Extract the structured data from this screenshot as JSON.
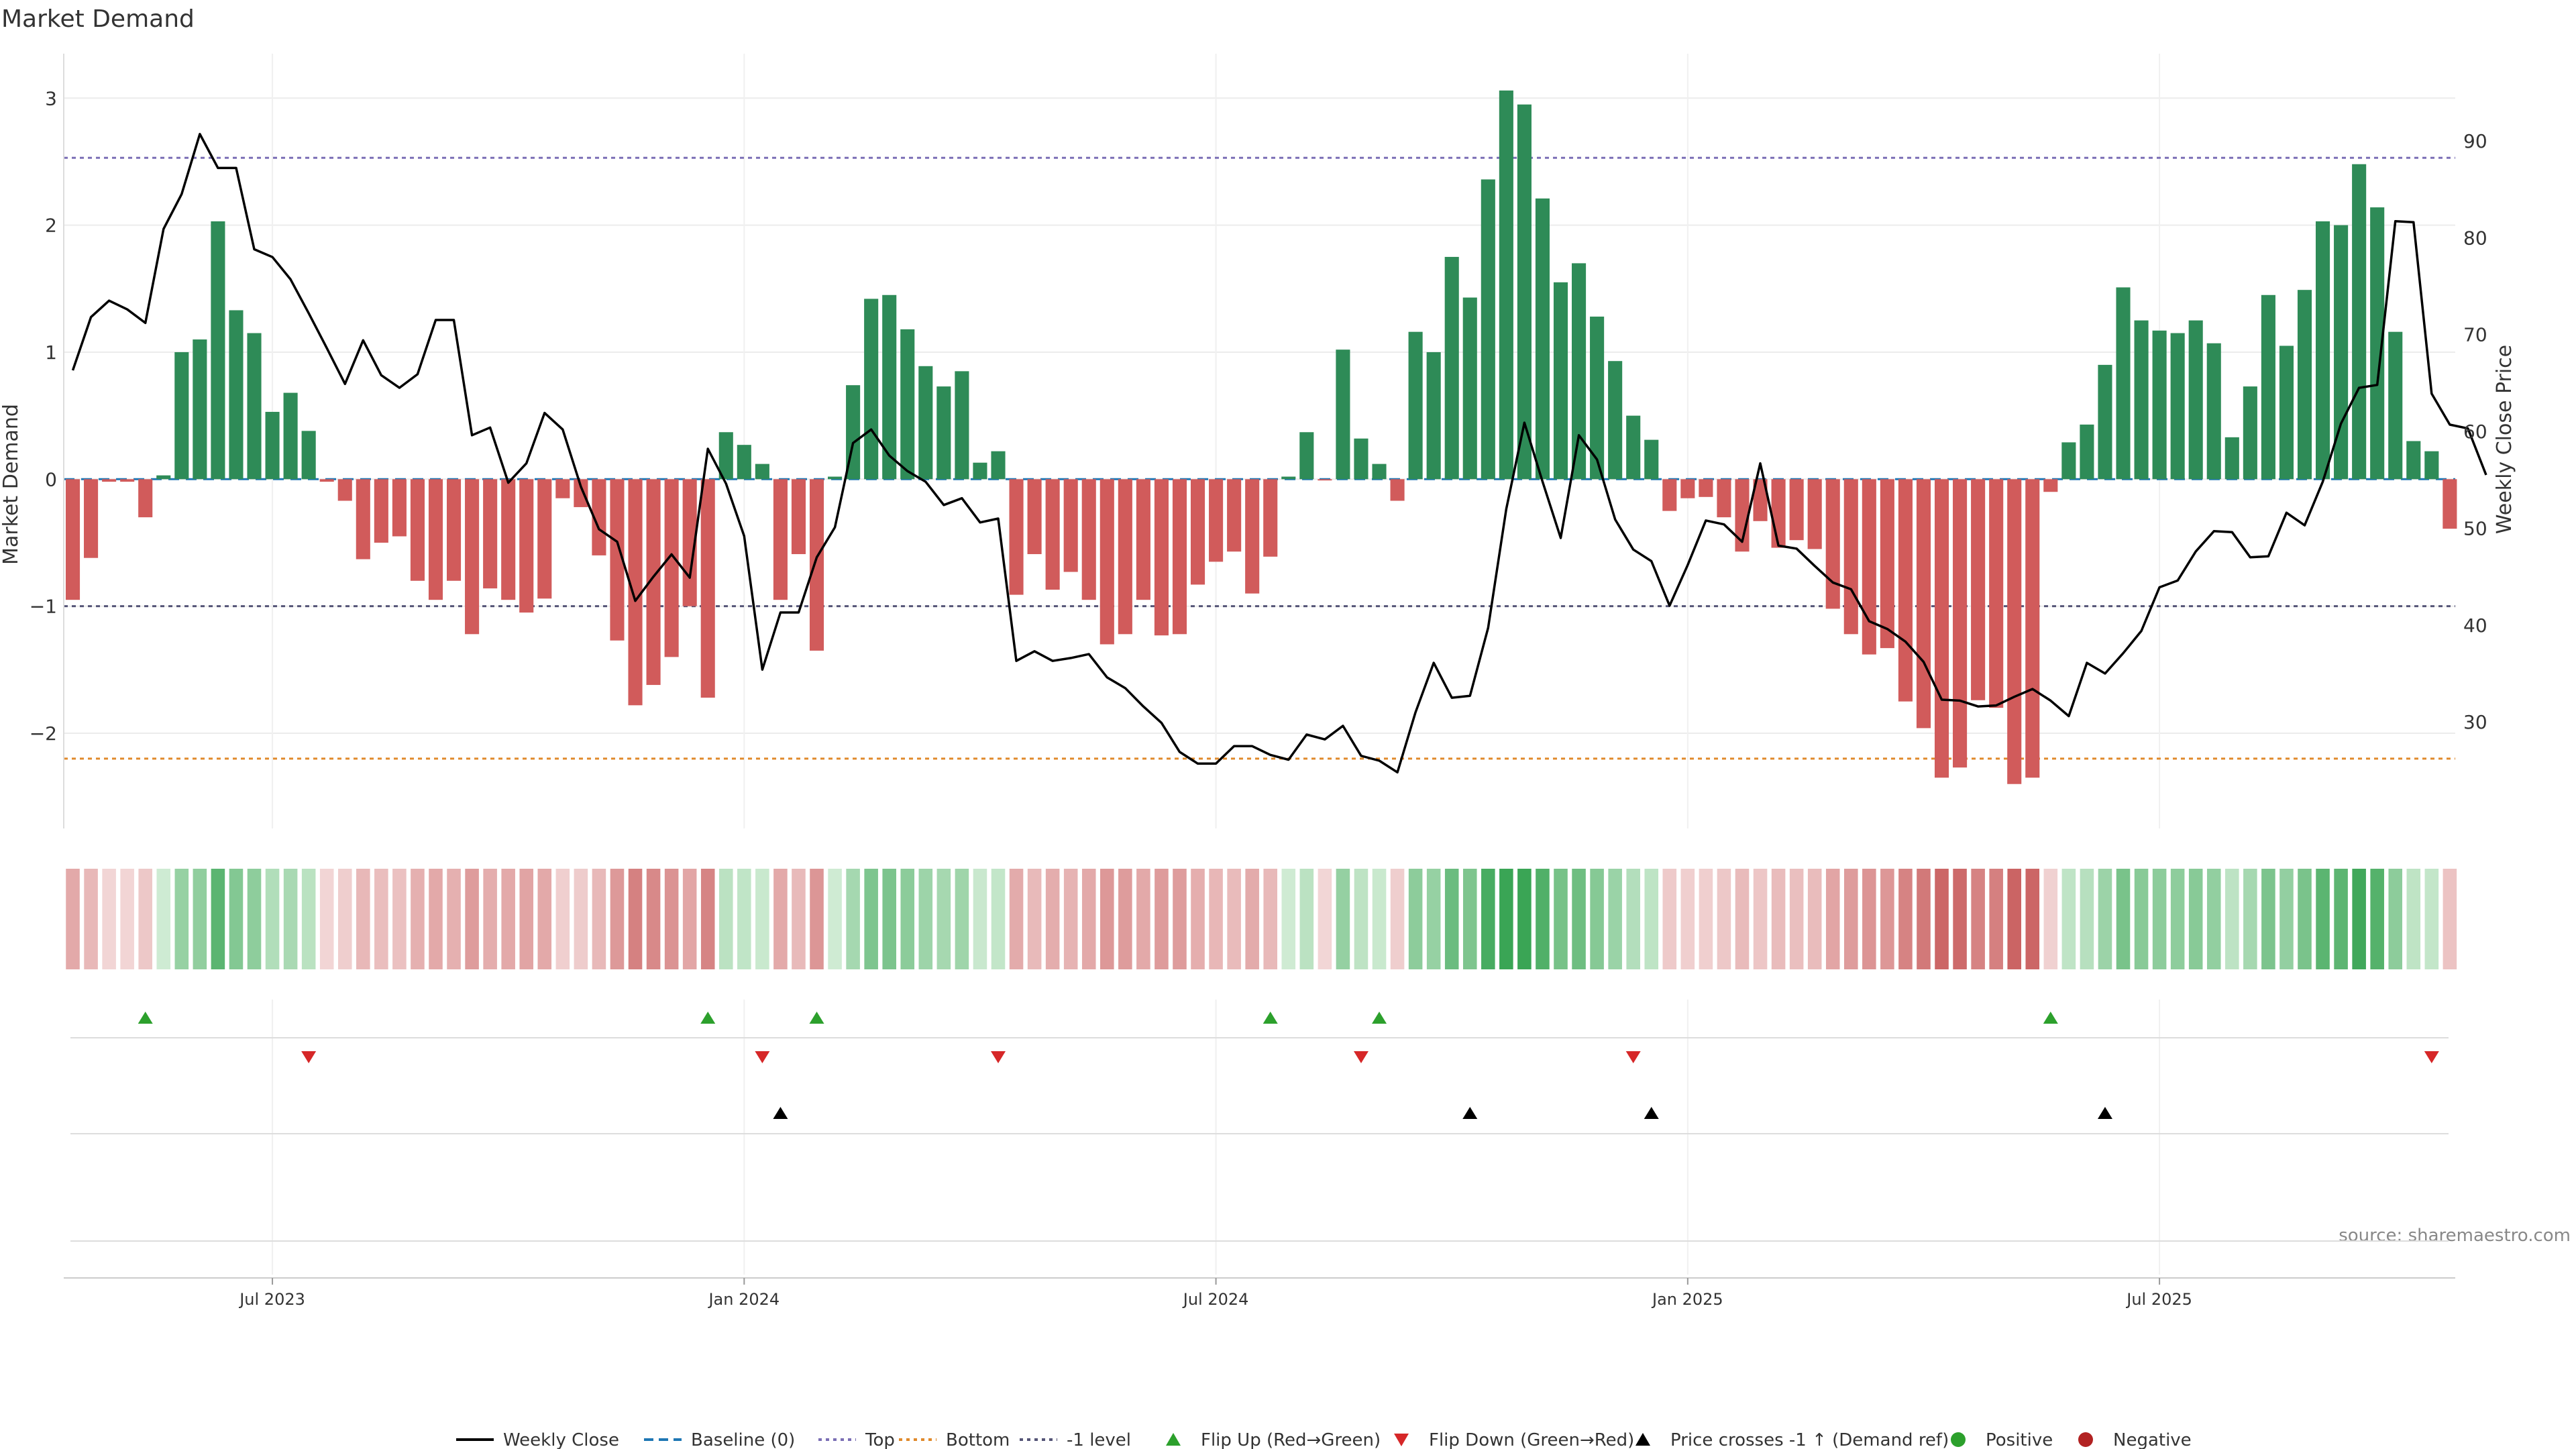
{
  "chart_data": {
    "type": "bar",
    "title": "Market Demand",
    "ylabel_left": "Market Demand",
    "ylabel_right": "Weekly Close Price",
    "ylim_left": [
      -2.75,
      3.35
    ],
    "ylim_right": [
      19,
      99
    ],
    "yticks_left": [
      {
        "v": 3,
        "label": "3"
      },
      {
        "v": 2,
        "label": "2"
      },
      {
        "v": 1,
        "label": "1"
      },
      {
        "v": 0,
        "label": "0"
      },
      {
        "v": -1,
        "label": "−1"
      },
      {
        "v": -2,
        "label": "−2"
      }
    ],
    "yticks_right": [
      {
        "v": 90,
        "label": "90"
      },
      {
        "v": 80,
        "label": "80"
      },
      {
        "v": 70,
        "label": "70"
      },
      {
        "v": 60,
        "label": "60"
      },
      {
        "v": 50,
        "label": "50"
      },
      {
        "v": 40,
        "label": "40"
      },
      {
        "v": 30,
        "label": "30"
      }
    ],
    "x_start": "2023-04-17",
    "x_step_days": 7,
    "x_ticks": [
      {
        "index": 11,
        "label": "Jul 2023"
      },
      {
        "index": 37,
        "label": "Jan 2024"
      },
      {
        "index": 63,
        "label": "Jul 2024"
      },
      {
        "index": 89,
        "label": "Jan 2025"
      },
      {
        "index": 115,
        "label": "Jul 2025"
      }
    ],
    "reference_lines": {
      "baseline": 0,
      "top": 2.53,
      "bottom": -2.2,
      "minus_one": -1
    },
    "demand": [
      -0.95,
      -0.62,
      -0.02,
      -0.02,
      -0.3,
      0.03,
      1.0,
      1.1,
      2.03,
      1.33,
      1.15,
      0.53,
      0.68,
      0.38,
      -0.02,
      -0.17,
      -0.63,
      -0.5,
      -0.45,
      -0.8,
      -0.95,
      -0.8,
      -1.22,
      -0.86,
      -0.95,
      -1.05,
      -0.94,
      -0.15,
      -0.22,
      -0.6,
      -1.27,
      -1.78,
      -1.62,
      -1.4,
      -1.0,
      -1.72,
      0.37,
      0.27,
      0.12,
      -0.95,
      -0.59,
      -1.35,
      0.02,
      0.74,
      1.42,
      1.45,
      1.18,
      0.89,
      0.73,
      0.85,
      0.13,
      0.22,
      -0.91,
      -0.59,
      -0.87,
      -0.73,
      -0.95,
      -1.3,
      -1.22,
      -0.95,
      -1.23,
      -1.22,
      -0.83,
      -0.65,
      -0.57,
      -0.9,
      -0.61,
      0.02,
      0.37,
      -0.01,
      1.02,
      0.32,
      0.12,
      -0.17,
      1.16,
      1.0,
      1.75,
      1.43,
      2.36,
      3.06,
      2.95,
      2.21,
      1.55,
      1.7,
      1.28,
      0.93,
      0.5,
      0.31,
      -0.25,
      -0.15,
      -0.14,
      -0.3,
      -0.57,
      -0.33,
      -0.54,
      -0.48,
      -0.55,
      -1.02,
      -1.22,
      -1.38,
      -1.33,
      -1.75,
      -1.96,
      -2.35,
      -2.27,
      -1.74,
      -1.8,
      -2.4,
      -2.35,
      -0.1,
      0.29,
      0.43,
      0.9,
      1.51,
      1.25,
      1.17,
      1.15,
      1.25,
      1.07,
      0.33,
      0.73,
      1.45,
      1.05,
      1.49,
      2.03,
      2.0,
      2.48,
      2.14,
      1.16,
      0.3,
      0.22,
      -0.39
    ],
    "price": [
      66.3,
      71.8,
      73.5,
      72.6,
      71.2,
      80.9,
      84.5,
      90.7,
      87.2,
      87.2,
      78.8,
      78.0,
      75.7,
      72.2,
      68.6,
      64.9,
      69.4,
      65.8,
      64.5,
      65.9,
      71.5,
      71.5,
      59.6,
      60.4,
      54.7,
      56.7,
      61.9,
      60.2,
      54.3,
      49.9,
      48.6,
      42.5,
      45.0,
      47.3,
      44.9,
      58.2,
      54.6,
      49.2,
      35.4,
      41.3,
      41.3,
      47.0,
      50.1,
      58.8,
      60.2,
      57.5,
      55.9,
      54.8,
      52.4,
      53.1,
      50.6,
      51.0,
      36.3,
      37.3,
      36.3,
      36.6,
      37.0,
      34.6,
      33.5,
      31.6,
      29.9,
      26.9,
      25.7,
      25.7,
      27.5,
      27.5,
      26.6,
      26.1,
      28.7,
      28.2,
      29.6,
      26.5,
      26.0,
      24.8,
      31.0,
      36.1,
      32.5,
      32.7,
      39.7,
      52.0,
      60.9,
      54.8,
      49.0,
      59.6,
      57.1,
      50.9,
      47.8,
      46.6,
      42.0,
      46.2,
      50.8,
      50.4,
      48.6,
      56.7,
      48.2,
      47.9,
      46.1,
      44.4,
      43.7,
      40.4,
      39.6,
      38.3,
      36.2,
      32.3,
      32.2,
      31.6,
      31.7,
      32.6,
      33.4,
      32.2,
      30.6,
      36.1,
      35.0,
      37.1,
      39.4,
      43.9,
      44.6,
      47.6,
      49.7,
      49.6,
      47.0,
      47.1,
      51.6,
      50.3,
      54.8,
      60.8,
      64.5,
      64.8,
      81.7,
      81.6,
      63.9,
      60.7,
      60.3,
      55.5
    ],
    "flip_up_indices": [
      4,
      35,
      41,
      66,
      72,
      109
    ],
    "flip_down_indices": [
      13,
      38,
      51,
      71,
      86,
      130
    ],
    "price_cross_indices": [
      39,
      77,
      87,
      112
    ],
    "colors": {
      "positive": "#2e8b57",
      "negative": "#d15b5b",
      "line": "#000000",
      "baseline": "#1f77b4",
      "top": "#7b6fb5",
      "bottom": "#e08a2c",
      "minus_one": "#555577",
      "flip_up": "#2ca02c",
      "flip_down": "#d62728",
      "cross": "#000000",
      "positive_dot": "#2ca02c",
      "negative_dot": "#b22222"
    },
    "legend_placement": "bottom",
    "legend": [
      {
        "key": "line",
        "label": "Weekly Close"
      },
      {
        "key": "baseline",
        "label": "Baseline (0)"
      },
      {
        "key": "top",
        "label": "Top"
      },
      {
        "key": "bottom",
        "label": "Bottom"
      },
      {
        "key": "minus_one",
        "label": "-1 level"
      },
      {
        "key": "flip_up",
        "label": "Flip Up (Red→Green)"
      },
      {
        "key": "flip_down",
        "label": "Flip Down (Green→Red)"
      },
      {
        "key": "cross",
        "label": "Price crosses -1 ↑ (Demand ref)"
      },
      {
        "key": "positive_dot",
        "label": "Positive"
      },
      {
        "key": "negative_dot",
        "label": "Negative"
      }
    ],
    "source_note": "source: sharemaestro.com"
  }
}
